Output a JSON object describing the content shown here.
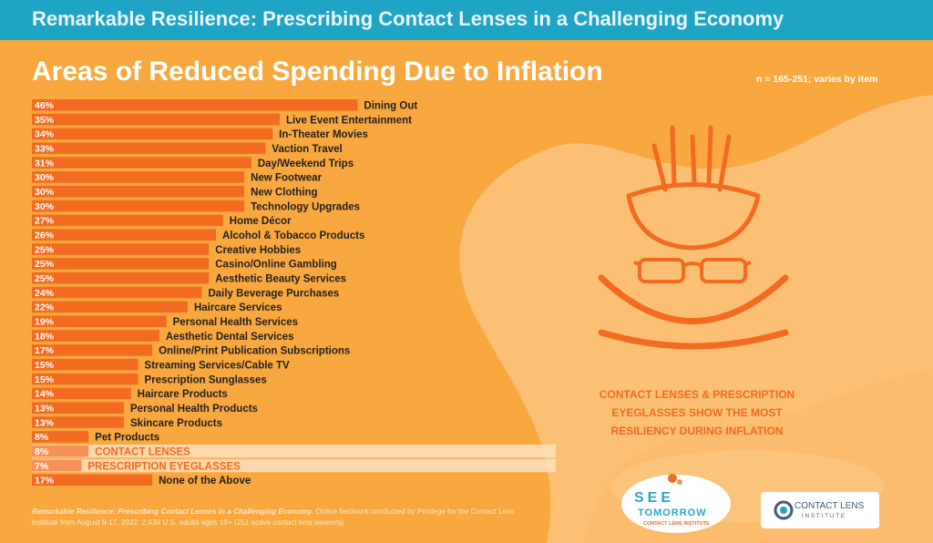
{
  "banner": {
    "title": "Remarkable Resilience: Prescribing Contact Lenses in a Challenging Economy"
  },
  "header": {
    "title": "Areas of Reduced Spending Due to Inflation",
    "sample_note": "n = 165-251; varies by item"
  },
  "callout": {
    "line1": "CONTACT LENSES & PRESCRIPTION",
    "line2": "EYEGLASSES SHOW THE MOST",
    "line3": "RESILIENCY DURING INFLATION"
  },
  "footnote": {
    "source_italic": "Remarkable Resilience: Prescribing Contact Lenses in a Challenging Economy.",
    "text": " Online fieldwork conducted by Prodege for the Contact Lens Institute from August 9-17, 2022. 2,439 U.S. adults ages 18+ (251 active contact lens wearers)."
  },
  "logos": {
    "see_tomorrow": {
      "line1": "SEE",
      "line2": "TOMORROW",
      "line3": "CONTACT LENS INSTITUTE"
    },
    "cli": {
      "line1": "CONTACT LENS",
      "line2": "INSTITUTE"
    }
  },
  "icons": [
    "bowl-chopsticks-icon",
    "eyeglasses-icon",
    "smile-arc-icon"
  ],
  "colors": {
    "banner": "#1fa4c6",
    "background": "#f8a83e",
    "bar": "#f26b21",
    "bar_highlight": "#f7915a",
    "highlight_label": "#f26b21",
    "label": "#231f20"
  },
  "chart_data": {
    "type": "bar",
    "orientation": "horizontal",
    "value_unit": "%",
    "categories": [
      "Dining Out",
      "Live Event Entertainment",
      "In-Theater Movies",
      "Vaction Travel",
      "Day/Weekend Trips",
      "New Footwear",
      "New Clothing",
      "Technology Upgrades",
      "Home Décor",
      "Alcohol & Tobacco Products",
      "Creative Hobbies",
      "Casino/Online Gambling",
      "Aesthetic Beauty Services",
      "Daily Beverage Purchases",
      "Haircare Services",
      "Personal Health Services",
      "Aesthetic Dental Services",
      "Online/Print Publication Subscriptions",
      "Streaming Services/Cable TV",
      "Prescription Sunglasses",
      "Haircare Products",
      "Personal Health Products",
      "Skincare Products",
      "Pet Products",
      "CONTACT LENSES",
      "PRESCRIPTION EYEGLASSES",
      "None of the Above"
    ],
    "values": [
      46,
      35,
      34,
      33,
      31,
      30,
      30,
      30,
      27,
      26,
      25,
      25,
      25,
      24,
      22,
      19,
      18,
      17,
      15,
      15,
      14,
      13,
      13,
      8,
      8,
      7,
      17
    ],
    "labels": [
      "46%",
      "35%",
      "34%",
      "33%",
      "31%",
      "30%",
      "30%",
      "30%",
      "27%",
      "26%",
      "25%",
      "25%",
      "25%",
      "24%",
      "22%",
      "19%",
      "18%",
      "17%",
      "15%",
      "15%",
      "14%",
      "13%",
      "13%",
      "8%",
      "8%",
      "7%",
      "17%"
    ],
    "highlighted": [
      "CONTACT LENSES",
      "PRESCRIPTION EYEGLASSES"
    ],
    "xlim": [
      0,
      50
    ]
  }
}
